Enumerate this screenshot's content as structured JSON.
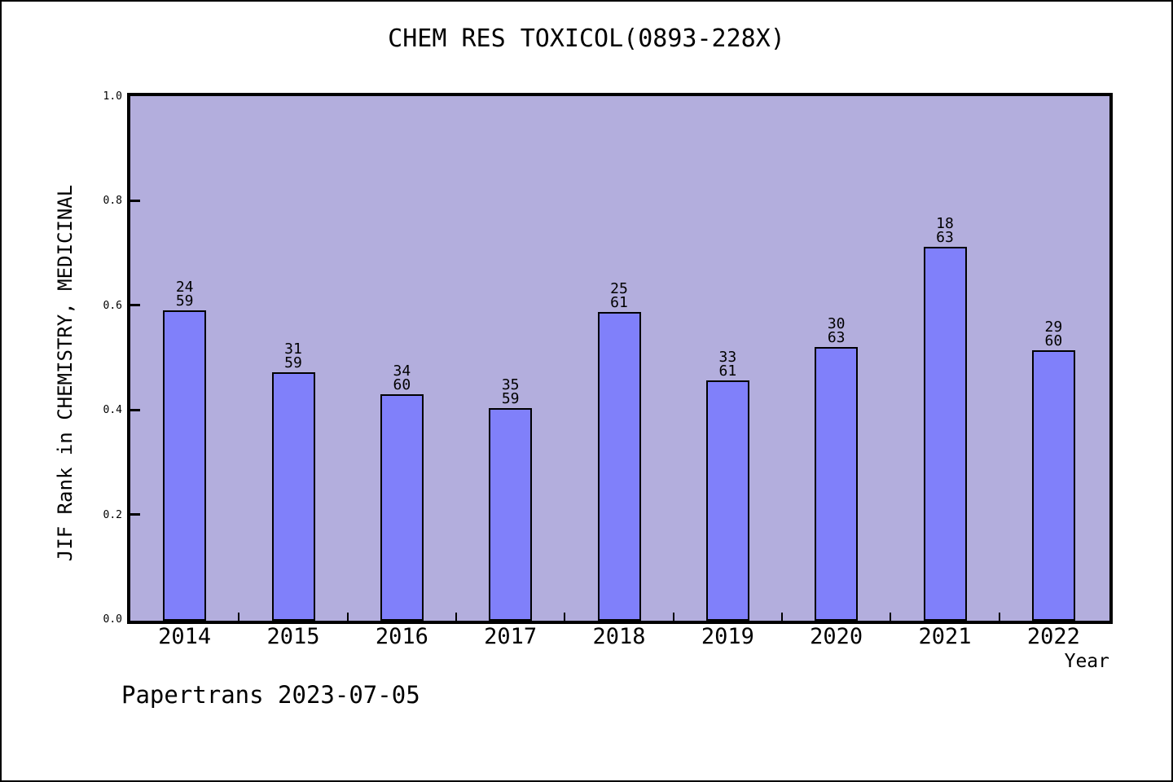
{
  "title": "CHEM RES TOXICOL(0893-228X)",
  "footer": "Papertrans 2023-07-05",
  "chart_data": {
    "type": "bar",
    "title": "CHEM RES TOXICOL(0893-228X)",
    "xlabel": "Year",
    "ylabel": "JIF Rank in CHEMISTRY, MEDICINAL",
    "ylim": [
      0.0,
      1.0
    ],
    "grid": false,
    "legend": "none",
    "plot_bg_color": "#b3aedd",
    "bar_color": "#8080fa",
    "bar_edge_color": "#000000",
    "categories": [
      "2014",
      "2015",
      "2016",
      "2017",
      "2018",
      "2019",
      "2020",
      "2021",
      "2022"
    ],
    "bars": [
      {
        "year": "2014",
        "rank": 24,
        "total": 59,
        "value": 0.5932
      },
      {
        "year": "2015",
        "rank": 31,
        "total": 59,
        "value": 0.4746
      },
      {
        "year": "2016",
        "rank": 34,
        "total": 60,
        "value": 0.4333
      },
      {
        "year": "2017",
        "rank": 35,
        "total": 59,
        "value": 0.4068
      },
      {
        "year": "2018",
        "rank": 25,
        "total": 61,
        "value": 0.5902
      },
      {
        "year": "2019",
        "rank": 33,
        "total": 61,
        "value": 0.459
      },
      {
        "year": "2020",
        "rank": 30,
        "total": 63,
        "value": 0.5238
      },
      {
        "year": "2021",
        "rank": 18,
        "total": 63,
        "value": 0.7143
      },
      {
        "year": "2022",
        "rank": 29,
        "total": 60,
        "value": 0.5167
      }
    ],
    "yticks": [
      {
        "v": 0.0,
        "label": "0.0"
      },
      {
        "v": 0.2,
        "label": "0.2"
      },
      {
        "v": 0.4,
        "label": "0.4"
      },
      {
        "v": 0.6,
        "label": "0.6"
      },
      {
        "v": 0.8,
        "label": "0.8"
      },
      {
        "v": 1.0,
        "label": "1.0"
      }
    ]
  }
}
